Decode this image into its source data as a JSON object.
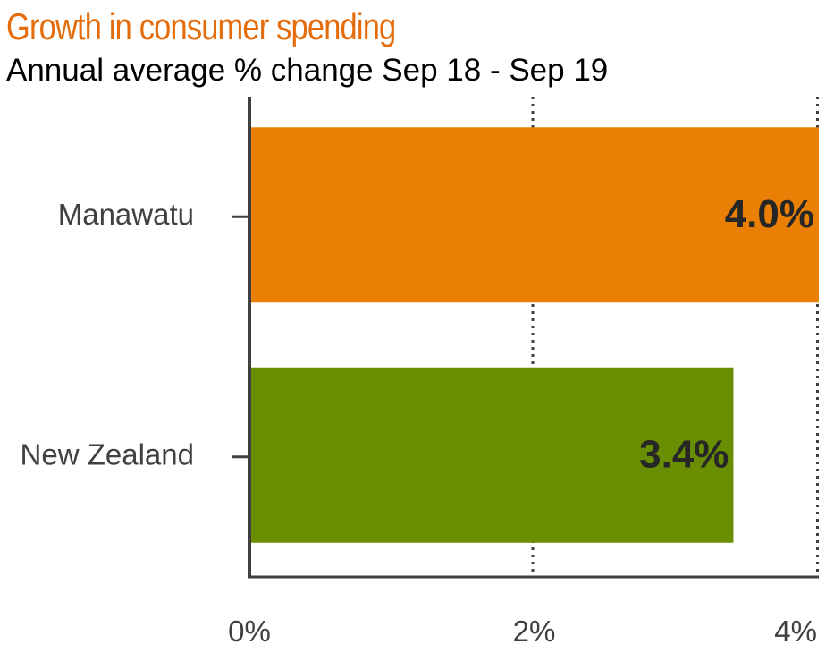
{
  "chart_data": {
    "type": "bar",
    "orientation": "horizontal",
    "title": "Growth in consumer spending",
    "subtitle": "Annual average % change Sep 18 - Sep 19",
    "categories": [
      "Manawatu",
      "New Zealand"
    ],
    "values": [
      4.0,
      3.4
    ],
    "data_labels": [
      "4.0%",
      "3.4%"
    ],
    "bar_colors": [
      "#E97F05",
      "#6A8E02"
    ],
    "title_color": "#E46C0A",
    "xlim": [
      0,
      4
    ],
    "xticks": [
      0,
      2,
      4
    ],
    "xtick_labels": [
      "0%",
      "2%",
      "4%"
    ],
    "grid": "vertical dotted",
    "legend": "none"
  }
}
